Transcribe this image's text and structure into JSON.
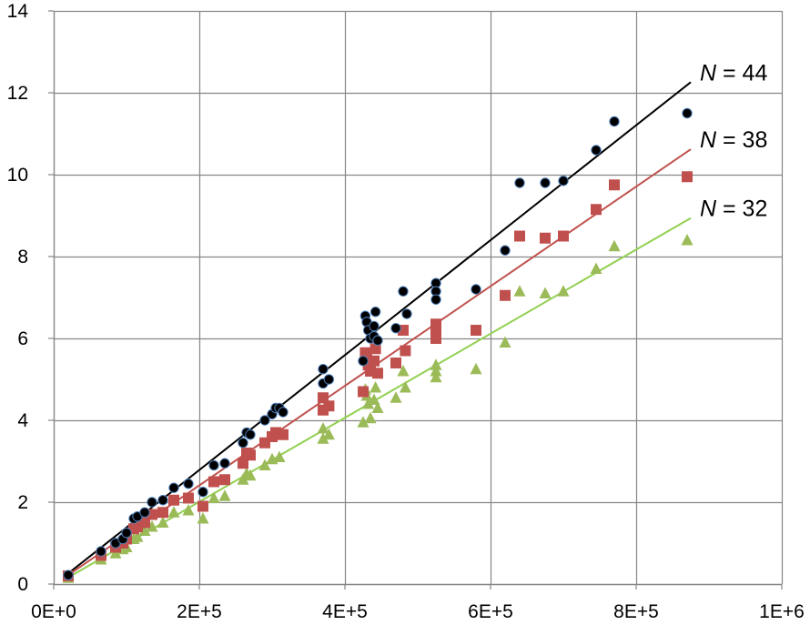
{
  "chart_data": {
    "type": "scatter",
    "title": "",
    "xlabel": "",
    "ylabel": "",
    "xlim": [
      0,
      1000000
    ],
    "ylim": [
      0,
      14
    ],
    "grid": true,
    "x_ticks": [
      {
        "value": 0,
        "label": "0E+0"
      },
      {
        "value": 200000,
        "label": "2E+5"
      },
      {
        "value": 400000,
        "label": "4E+5"
      },
      {
        "value": 600000,
        "label": "6E+5"
      },
      {
        "value": 800000,
        "label": "8E+5"
      },
      {
        "value": 1000000,
        "label": "1E+6"
      }
    ],
    "y_ticks": [
      {
        "value": 0,
        "label": "0"
      },
      {
        "value": 2,
        "label": "2"
      },
      {
        "value": 4,
        "label": "4"
      },
      {
        "value": 6,
        "label": "6"
      },
      {
        "value": 8,
        "label": "8"
      },
      {
        "value": 10,
        "label": "10"
      },
      {
        "value": 12,
        "label": "12"
      },
      {
        "value": 14,
        "label": "14"
      }
    ],
    "series": [
      {
        "name": "N = 44",
        "label_prefix": "N",
        "label_suffix": " = 44",
        "color": "#000000",
        "line_color": "#000000",
        "marker": "circle",
        "fit": {
          "x": [
            20000,
            875000
          ],
          "y": [
            0.26,
            12.26
          ]
        },
        "points": [
          [
            20000,
            0.22
          ],
          [
            65000,
            0.8
          ],
          [
            85000,
            1.0
          ],
          [
            95000,
            1.1
          ],
          [
            100000,
            1.25
          ],
          [
            110000,
            1.6
          ],
          [
            115000,
            1.65
          ],
          [
            125000,
            1.75
          ],
          [
            135000,
            2.0
          ],
          [
            150000,
            2.05
          ],
          [
            165000,
            2.35
          ],
          [
            185000,
            2.45
          ],
          [
            205000,
            2.25
          ],
          [
            220000,
            2.9
          ],
          [
            235000,
            2.95
          ],
          [
            260000,
            3.45
          ],
          [
            265000,
            3.7
          ],
          [
            270000,
            3.65
          ],
          [
            290000,
            4.0
          ],
          [
            300000,
            4.15
          ],
          [
            305000,
            4.3
          ],
          [
            310000,
            4.3
          ],
          [
            315000,
            4.2
          ],
          [
            370000,
            5.25
          ],
          [
            370000,
            4.9
          ],
          [
            378000,
            5.0
          ],
          [
            425000,
            5.45
          ],
          [
            428000,
            6.55
          ],
          [
            430000,
            6.4
          ],
          [
            432000,
            6.2
          ],
          [
            435000,
            6.0
          ],
          [
            440000,
            6.3
          ],
          [
            440000,
            6.05
          ],
          [
            442000,
            6.65
          ],
          [
            445000,
            5.95
          ],
          [
            470000,
            6.25
          ],
          [
            480000,
            7.15
          ],
          [
            485000,
            6.6
          ],
          [
            525000,
            7.35
          ],
          [
            525000,
            7.15
          ],
          [
            525000,
            6.95
          ],
          [
            580000,
            7.2
          ],
          [
            620000,
            8.15
          ],
          [
            640000,
            9.8
          ],
          [
            675000,
            9.8
          ],
          [
            700000,
            9.85
          ],
          [
            745000,
            10.6
          ],
          [
            770000,
            11.3
          ],
          [
            870000,
            11.5
          ]
        ]
      },
      {
        "name": "N = 38",
        "label_prefix": "N",
        "label_suffix": " = 38",
        "color": "#c0504d",
        "line_color": "#c0504d",
        "marker": "square",
        "fit": {
          "x": [
            20000,
            875000
          ],
          "y": [
            0.22,
            10.62
          ]
        },
        "points": [
          [
            20000,
            0.2
          ],
          [
            65000,
            0.7
          ],
          [
            85000,
            0.9
          ],
          [
            95000,
            1.0
          ],
          [
            100000,
            1.1
          ],
          [
            110000,
            1.35
          ],
          [
            115000,
            1.4
          ],
          [
            125000,
            1.5
          ],
          [
            135000,
            1.7
          ],
          [
            150000,
            1.75
          ],
          [
            165000,
            2.05
          ],
          [
            185000,
            2.1
          ],
          [
            205000,
            1.9
          ],
          [
            220000,
            2.5
          ],
          [
            235000,
            2.55
          ],
          [
            260000,
            2.95
          ],
          [
            265000,
            3.2
          ],
          [
            270000,
            3.15
          ],
          [
            290000,
            3.45
          ],
          [
            300000,
            3.6
          ],
          [
            305000,
            3.7
          ],
          [
            315000,
            3.65
          ],
          [
            370000,
            4.55
          ],
          [
            370000,
            4.25
          ],
          [
            378000,
            4.35
          ],
          [
            425000,
            4.7
          ],
          [
            428000,
            5.65
          ],
          [
            430000,
            5.5
          ],
          [
            432000,
            5.35
          ],
          [
            435000,
            5.2
          ],
          [
            440000,
            5.45
          ],
          [
            442000,
            5.75
          ],
          [
            445000,
            5.15
          ],
          [
            470000,
            5.4
          ],
          [
            480000,
            6.2
          ],
          [
            483000,
            5.7
          ],
          [
            525000,
            6.35
          ],
          [
            525000,
            6.2
          ],
          [
            525000,
            6.0
          ],
          [
            580000,
            6.2
          ],
          [
            620000,
            7.05
          ],
          [
            640000,
            8.5
          ],
          [
            675000,
            8.45
          ],
          [
            700000,
            8.5
          ],
          [
            745000,
            9.15
          ],
          [
            770000,
            9.75
          ],
          [
            870000,
            9.95
          ]
        ]
      },
      {
        "name": "N = 32",
        "label_prefix": "N",
        "label_suffix": " = 32",
        "color": "#9bbb59",
        "line_color": "#92d050",
        "marker": "triangle",
        "fit": {
          "x": [
            20000,
            875000
          ],
          "y": [
            0.16,
            8.94
          ]
        },
        "points": [
          [
            20000,
            0.15
          ],
          [
            65000,
            0.6
          ],
          [
            85000,
            0.75
          ],
          [
            95000,
            0.85
          ],
          [
            100000,
            0.9
          ],
          [
            110000,
            1.1
          ],
          [
            115000,
            1.15
          ],
          [
            125000,
            1.3
          ],
          [
            135000,
            1.4
          ],
          [
            150000,
            1.5
          ],
          [
            165000,
            1.75
          ],
          [
            185000,
            1.8
          ],
          [
            205000,
            1.6
          ],
          [
            220000,
            2.1
          ],
          [
            235000,
            2.15
          ],
          [
            260000,
            2.55
          ],
          [
            265000,
            2.7
          ],
          [
            270000,
            2.65
          ],
          [
            290000,
            2.9
          ],
          [
            300000,
            3.05
          ],
          [
            310000,
            3.1
          ],
          [
            370000,
            3.8
          ],
          [
            370000,
            3.55
          ],
          [
            378000,
            3.65
          ],
          [
            425000,
            3.95
          ],
          [
            428000,
            4.75
          ],
          [
            430000,
            4.6
          ],
          [
            432000,
            4.4
          ],
          [
            435000,
            4.05
          ],
          [
            440000,
            4.5
          ],
          [
            442000,
            4.8
          ],
          [
            445000,
            4.3
          ],
          [
            470000,
            4.55
          ],
          [
            480000,
            5.2
          ],
          [
            483000,
            4.8
          ],
          [
            525000,
            5.35
          ],
          [
            525000,
            5.2
          ],
          [
            525000,
            5.05
          ],
          [
            580000,
            5.25
          ],
          [
            620000,
            5.9
          ],
          [
            640000,
            7.15
          ],
          [
            675000,
            7.1
          ],
          [
            700000,
            7.15
          ],
          [
            745000,
            7.7
          ],
          [
            770000,
            8.25
          ],
          [
            870000,
            8.4
          ]
        ]
      }
    ]
  }
}
